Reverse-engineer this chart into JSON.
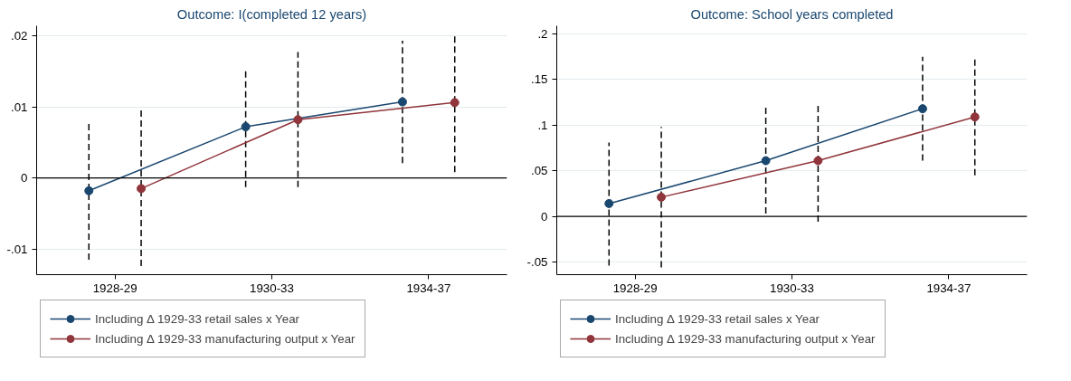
{
  "chart_data": [
    {
      "type": "line",
      "title": "Outcome: I(completed 12 years)",
      "categories": [
        "1928-29",
        "1930-33",
        "1934-37"
      ],
      "ylim": [
        -0.0136,
        0.0214
      ],
      "yticks": [
        {
          "value": -0.01,
          "label": "-.01"
        },
        0,
        {
          "value": 0.01,
          "label": ".01"
        },
        {
          "value": 0.02,
          "label": ".02"
        }
      ],
      "grid": "y",
      "legend": "bottom",
      "marker": "circle",
      "line_style": "solid",
      "ref_lines": [
        {
          "axis": "y",
          "value": 0,
          "color": "#000000"
        }
      ],
      "series": [
        {
          "name": "Including Δ 1929-33 retail sales x Year",
          "color": "#1a476f",
          "values": [
            -0.0018,
            0.0072,
            0.0107
          ],
          "errors": [
            [
              -0.0115,
              0.0079
            ],
            [
              -0.0013,
              0.0153
            ],
            [
              0.0021,
              0.0193
            ]
          ]
        },
        {
          "name": "Including Δ 1929-33 manufacturing output x Year",
          "color": "#90353b",
          "values": [
            -0.0015,
            0.0082,
            0.0106
          ],
          "errors": [
            [
              -0.0124,
              0.0095
            ],
            [
              -0.0013,
              0.0177
            ],
            [
              0.0008,
              0.0203
            ]
          ]
        }
      ]
    },
    {
      "type": "line",
      "title": "Outcome: School years completed",
      "categories": [
        "1928-29",
        "1930-33",
        "1934-37"
      ],
      "ylim": [
        -0.064,
        0.209
      ],
      "yticks": [
        {
          "value": -0.05,
          "label": "-.05"
        },
        0,
        {
          "value": 0.05,
          "label": ".05"
        },
        {
          "value": 0.1,
          "label": ".1"
        },
        {
          "value": 0.15,
          "label": ".15"
        },
        {
          "value": 0.2,
          "label": ".2"
        }
      ],
      "grid": "y",
      "legend": "bottom",
      "marker": "circle",
      "line_style": "solid",
      "ref_lines": [
        {
          "axis": "y",
          "value": 0,
          "color": "#000000"
        }
      ],
      "series": [
        {
          "name": "Including Δ 1929-33 retail sales x Year",
          "color": "#1a476f",
          "values": [
            0.014,
            0.061,
            0.118
          ],
          "errors": [
            [
              -0.054,
              0.081
            ],
            [
              0.003,
              0.12
            ],
            [
              0.061,
              0.175
            ]
          ]
        },
        {
          "name": "Including Δ 1929-33 manufacturing output x Year",
          "color": "#90353b",
          "values": [
            0.021,
            0.061,
            0.109
          ],
          "errors": [
            [
              -0.056,
              0.098
            ],
            [
              -0.006,
              0.124
            ],
            [
              0.045,
              0.173
            ]
          ]
        }
      ]
    }
  ]
}
